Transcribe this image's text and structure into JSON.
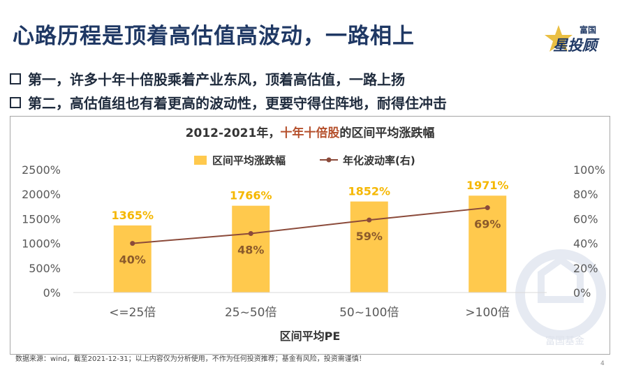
{
  "slide": {
    "title": "心路历程是顶着高估值高波动，一路相上",
    "bullets": [
      "第一，许多十年十倍股乘着产业东风，顶着高估值，一路上扬",
      "第二，高估值组也有着更高的波动性，更要守得住阵地，耐得住冲击"
    ],
    "footnote": "数据来源：wind，截至2021-12-31；以上内容仅为分析使用，不作为任何投资推荐；基金有风险，投资需谨慎！",
    "page_number": "4"
  },
  "logo": {
    "top_text": "富国",
    "main_text": "星投顾",
    "watermark": "富国基金"
  },
  "colors": {
    "title": "#1f3864",
    "bar": "#ffc94d",
    "bar_label": "#f5b700",
    "line": "#8b4a3a",
    "highlight": "#b5502c"
  },
  "chart_data": {
    "type": "bar",
    "title_parts": [
      "2012-2021年，",
      "十年十倍股",
      "的区间平均涨跌幅"
    ],
    "categories": [
      "<=25倍",
      "25~50倍",
      "50~100倍",
      ">100倍"
    ],
    "xlabel": "区间平均PE",
    "series": [
      {
        "name": "区间平均涨跌幅",
        "type": "bar",
        "axis": "left",
        "values": [
          1365,
          1766,
          1852,
          1971
        ],
        "labels": [
          "1365%",
          "1766%",
          "1852%",
          "1971%"
        ]
      },
      {
        "name": "年化波动率(右)",
        "type": "line",
        "axis": "right",
        "values": [
          40,
          48,
          59,
          69
        ],
        "labels": [
          "40%",
          "48%",
          "59%",
          "69%"
        ]
      }
    ],
    "y_left": {
      "min": 0,
      "max": 2500,
      "ticks": [
        "0%",
        "500%",
        "1000%",
        "1500%",
        "2000%",
        "2500%"
      ]
    },
    "y_right": {
      "min": 0,
      "max": 100,
      "ticks": [
        "0%",
        "20%",
        "40%",
        "60%",
        "80%",
        "100%"
      ]
    },
    "legend_position": "top",
    "grid": false
  }
}
